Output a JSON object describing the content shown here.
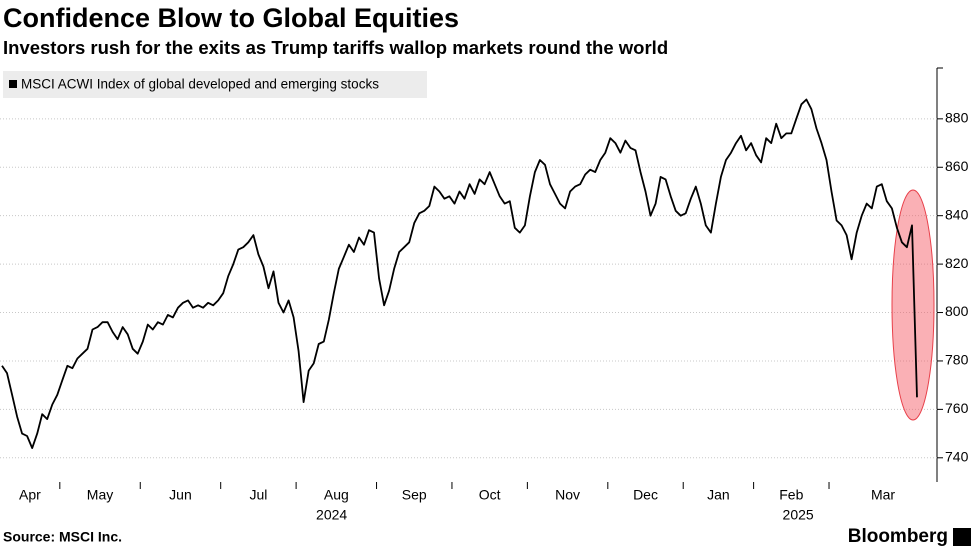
{
  "chart_data": {
    "type": "line",
    "title": "Confidence Blow to Global Equities",
    "subtitle": "Investors rush for the exits as Trump tariffs wallop markets round the world",
    "source": "Source: MSCI Inc.",
    "brand": "Bloomberg",
    "years": [
      "2024",
      "2025"
    ],
    "categories": [
      "Apr",
      null,
      null,
      null,
      null,
      null,
      null,
      null,
      null,
      null,
      null,
      null,
      "May",
      null,
      null,
      null,
      null,
      null,
      null,
      null,
      null,
      null,
      null,
      null,
      null,
      null,
      null,
      null,
      "Jun",
      null,
      null,
      null,
      null,
      null,
      null,
      null,
      null,
      null,
      null,
      null,
      null,
      null,
      null,
      null,
      "Jul",
      null,
      null,
      null,
      null,
      null,
      null,
      null,
      null,
      null,
      null,
      null,
      null,
      null,
      null,
      "Aug",
      null,
      null,
      null,
      null,
      null,
      null,
      null,
      null,
      null,
      null,
      null,
      null,
      null,
      null,
      null,
      "Sep",
      null,
      null,
      null,
      null,
      null,
      null,
      null,
      null,
      null,
      null,
      null,
      null,
      null,
      null,
      "Oct",
      null,
      null,
      null,
      null,
      null,
      null,
      null,
      null,
      null,
      null,
      null,
      null,
      null,
      null,
      "Nov",
      null,
      null,
      null,
      null,
      null,
      null,
      null,
      null,
      null,
      null,
      null,
      null,
      null,
      null,
      null,
      "Dec",
      null,
      null,
      null,
      null,
      null,
      null,
      null,
      null,
      null,
      null,
      null,
      null,
      null,
      null,
      "Jan",
      null,
      null,
      null,
      null,
      null,
      null,
      null,
      null,
      null,
      null,
      null,
      null,
      null,
      "Feb",
      null,
      null,
      null,
      null,
      null,
      null,
      null,
      null,
      null,
      null,
      null,
      null,
      null,
      null,
      "Mar",
      null,
      null,
      null,
      null,
      null,
      null,
      null,
      null,
      null,
      null,
      null,
      null,
      null,
      null,
      null,
      null,
      null
    ],
    "series": [
      {
        "name": "MSCI ACWI Index of global developed and emerging stocks",
        "color": "#000000",
        "values": [
          778,
          775,
          766,
          757,
          750,
          749,
          744,
          750,
          758,
          756,
          762,
          766,
          772,
          778,
          777,
          781,
          783,
          785,
          793,
          794,
          796,
          796,
          792,
          789,
          794,
          791,
          785,
          783,
          788,
          795,
          793,
          796,
          795,
          799,
          798,
          802,
          804,
          805,
          802,
          803,
          802,
          804,
          803,
          805,
          808,
          815,
          820,
          826,
          827,
          829,
          832,
          824,
          819,
          810,
          817,
          804,
          800,
          805,
          798,
          784,
          763,
          776,
          779,
          787,
          788,
          797,
          808,
          818,
          823,
          828,
          825,
          831,
          828,
          834,
          833,
          814,
          803,
          809,
          818,
          825,
          827,
          829,
          837,
          841,
          842,
          844,
          852,
          850,
          847,
          848,
          845,
          850,
          847,
          853,
          849,
          855,
          853,
          858,
          853,
          848,
          845,
          846,
          835,
          833,
          836,
          848,
          858,
          863,
          861,
          853,
          849,
          845,
          843,
          850,
          852,
          853,
          857,
          859,
          858,
          863,
          866,
          872,
          870,
          866,
          871,
          868,
          867,
          858,
          850,
          840,
          845,
          856,
          855,
          848,
          842,
          840,
          841,
          847,
          852,
          845,
          836,
          833,
          845,
          856,
          863,
          866,
          870,
          873,
          867,
          870,
          865,
          862,
          872,
          870,
          878,
          872,
          874,
          874,
          880,
          886,
          888,
          884,
          876,
          870,
          863,
          850,
          838,
          836,
          832,
          822,
          833,
          840,
          845,
          843,
          852,
          853,
          846,
          843,
          835,
          829,
          827,
          836,
          765
        ]
      }
    ],
    "ylim": [
      730,
      901
    ],
    "yticks": [
      740,
      760,
      780,
      800,
      820,
      840,
      860,
      880
    ],
    "grid": true
  }
}
